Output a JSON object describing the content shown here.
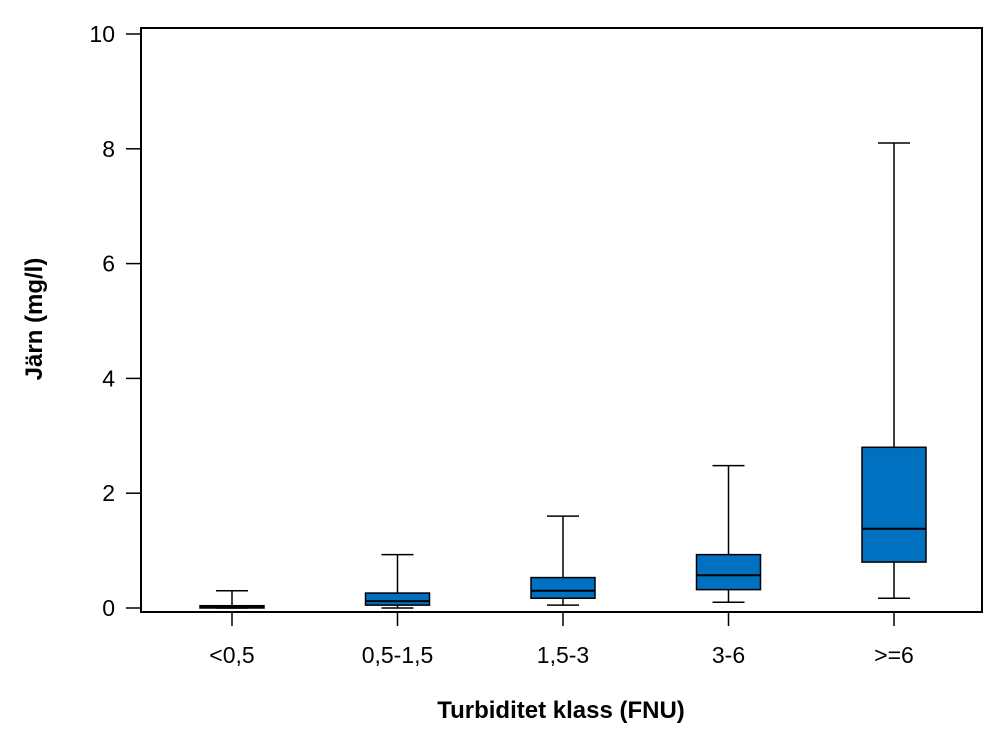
{
  "chart_data": {
    "type": "boxplot",
    "title": "",
    "xlabel": "Turbiditet klass (FNU)",
    "ylabel": "Järn (mg/l)",
    "ylim": [
      0,
      10
    ],
    "yticks": [
      "0",
      "2",
      "4",
      "6",
      "8",
      "10"
    ],
    "categories": [
      "<0,5",
      "0,5-1,5",
      "1,5-3",
      "3-6",
      ">=6"
    ],
    "boxes": [
      {
        "category": "<0,5",
        "whisker_low": 0.0,
        "q1": 0.0,
        "median": 0.02,
        "q3": 0.04,
        "whisker_high": 0.3
      },
      {
        "category": "0,5-1,5",
        "whisker_low": 0.0,
        "q1": 0.05,
        "median": 0.12,
        "q3": 0.26,
        "whisker_high": 0.93
      },
      {
        "category": "1,5-3",
        "whisker_low": 0.05,
        "q1": 0.17,
        "median": 0.3,
        "q3": 0.53,
        "whisker_high": 1.6
      },
      {
        "category": "3-6",
        "whisker_low": 0.1,
        "q1": 0.32,
        "median": 0.57,
        "q3": 0.93,
        "whisker_high": 2.48
      },
      {
        "category": ">=6",
        "whisker_low": 0.17,
        "q1": 0.8,
        "median": 1.38,
        "q3": 2.8,
        "whisker_high": 8.1
      }
    ],
    "box_color": "#0070C0",
    "grid": false,
    "legend": "none"
  }
}
